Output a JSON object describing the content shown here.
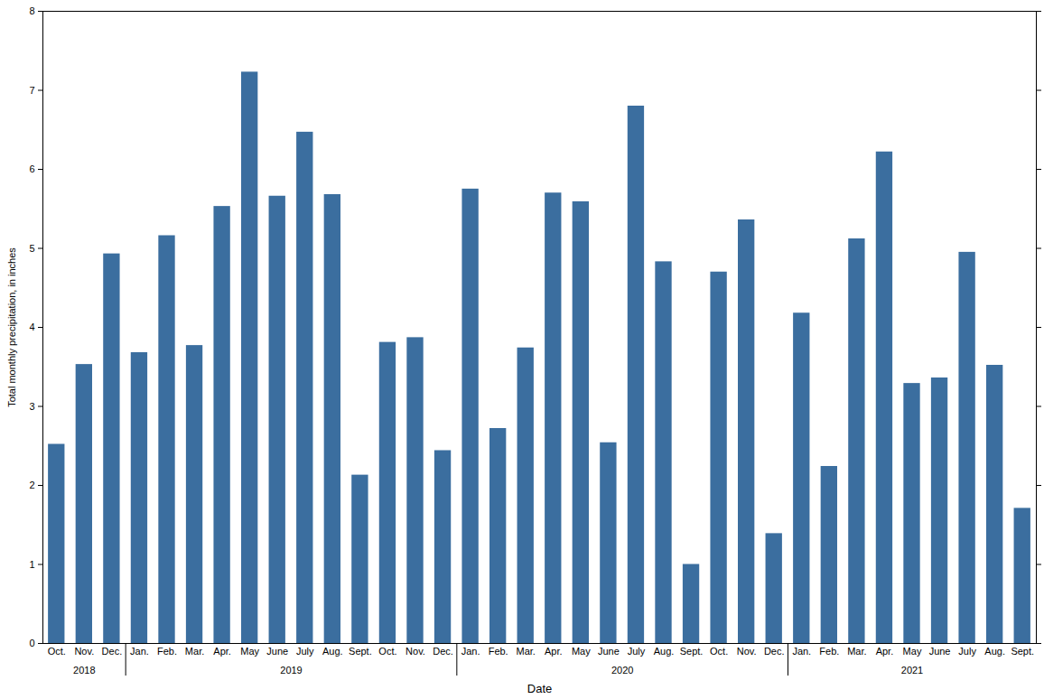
{
  "chart_data": {
    "type": "bar",
    "x_label": "Date",
    "y_label": "Total monthly precipitation, in inches",
    "categories": [
      "Oct.",
      "Nov.",
      "Dec.",
      "Jan.",
      "Feb.",
      "Mar.",
      "Apr.",
      "May",
      "June",
      "July",
      "Aug.",
      "Sept.",
      "Oct.",
      "Nov.",
      "Dec.",
      "Jan.",
      "Feb.",
      "Mar.",
      "Apr.",
      "May",
      "June",
      "July",
      "Aug.",
      "Sept.",
      "Oct.",
      "Nov.",
      "Dec.",
      "Jan.",
      "Feb.",
      "Mar.",
      "Apr.",
      "May",
      "June",
      "July",
      "Aug.",
      "Sept."
    ],
    "years": [
      "2018",
      "2018",
      "2018",
      "2019",
      "2019",
      "2019",
      "2019",
      "2019",
      "2019",
      "2019",
      "2019",
      "2019",
      "2019",
      "2019",
      "2019",
      "2020",
      "2020",
      "2020",
      "2020",
      "2020",
      "2020",
      "2020",
      "2020",
      "2020",
      "2020",
      "2020",
      "2020",
      "2021",
      "2021",
      "2021",
      "2021",
      "2021",
      "2021",
      "2021",
      "2021",
      "2021"
    ],
    "values": [
      2.52,
      3.53,
      4.93,
      3.68,
      5.16,
      3.77,
      5.53,
      7.23,
      5.66,
      6.47,
      5.68,
      2.13,
      3.81,
      3.87,
      2.44,
      5.75,
      2.72,
      3.74,
      5.7,
      5.59,
      2.54,
      6.8,
      4.83,
      1.0,
      4.7,
      5.36,
      1.39,
      4.18,
      2.24,
      5.12,
      6.22,
      3.29,
      3.36,
      4.95,
      3.52,
      1.71
    ],
    "color": "#3b6e9f",
    "ylim": [
      0,
      8
    ],
    "yticks": [
      0,
      1,
      2,
      3,
      4,
      5,
      6,
      7,
      8
    ],
    "grid": false
  }
}
